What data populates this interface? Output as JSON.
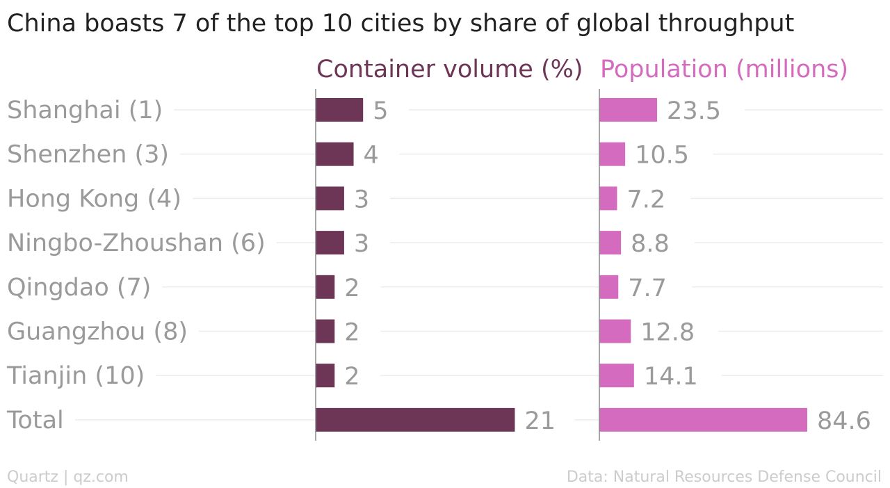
{
  "chart_data": {
    "type": "bar",
    "orientation": "horizontal",
    "title": "China boasts 7 of the top 10 cities by share of global throughput",
    "categories": [
      "Shanghai (1)",
      "Shenzhen (3)",
      "Hong Kong (4)",
      "Ningbo-Zhoushan (6)",
      "Qingdao (7)",
      "Guangzhou (8)",
      "Tianjin (10)",
      "Total"
    ],
    "series": [
      {
        "name": "Container volume (%)",
        "values": [
          5,
          4,
          3,
          3,
          2,
          2,
          2,
          21
        ],
        "labels": [
          "5",
          "4",
          "3",
          "3",
          "2",
          "2",
          "2",
          "21"
        ],
        "color": "#6d3657",
        "xlim": [
          0,
          21.7
        ]
      },
      {
        "name": "Population (millions)",
        "values": [
          23.5,
          10.5,
          7.2,
          8.8,
          7.7,
          12.8,
          14.1,
          84.6
        ],
        "labels": [
          "23.5",
          "10.5",
          "7.2",
          "8.8",
          "7.7",
          "12.8",
          "14.1",
          "84.6"
        ],
        "color": "#d46bbf",
        "xlim": [
          0,
          86.3
        ]
      }
    ],
    "grid": true,
    "legend": "none"
  },
  "footer": {
    "source_left": "Quartz | qz.com",
    "source_right": "Data: Natural Resources Defense Council"
  }
}
